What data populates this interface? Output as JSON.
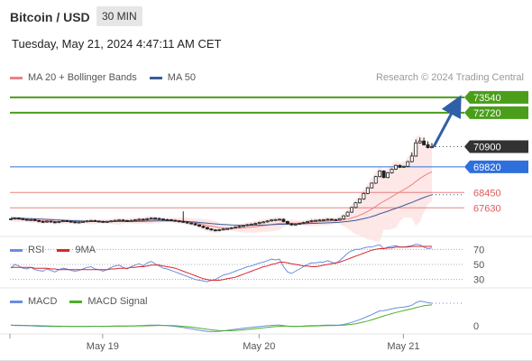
{
  "header": {
    "title": "Bitcoin / USD",
    "interval": "30 MIN",
    "datetime": "Tuesday, May 21, 2024 4:47:11 AM CET",
    "credit": "Research © 2024 Trading Central"
  },
  "legends": {
    "main": [
      {
        "label": "MA 20 + Bollinger Bands",
        "color": "#f08080"
      },
      {
        "label": "MA 50",
        "color": "#3a5c99"
      }
    ],
    "rsi": [
      {
        "label": "RSI",
        "color": "#6a8de0"
      },
      {
        "label": "9MA",
        "color": "#d9262b"
      }
    ],
    "macd": [
      {
        "label": "MACD",
        "color": "#6a8de0"
      },
      {
        "label": "MACD Signal",
        "color": "#4caf2a"
      }
    ]
  },
  "colors": {
    "target": "#4a9e1a",
    "support": "#2f6fdc",
    "resistance_low": "#e05a5a",
    "current": "#333333",
    "arrow": "#2f5fa6",
    "candle": "#222222",
    "band_fill": "#fde3e3"
  },
  "chart_data": [
    {
      "type": "candlestick",
      "x_ticks": [
        "May 19",
        "May 20",
        "May 21"
      ],
      "ylim": [
        66100,
        74400
      ],
      "levels": [
        {
          "label": "73540",
          "value": 73540,
          "kind": "target"
        },
        {
          "label": "72720",
          "value": 72720,
          "kind": "target"
        },
        {
          "label": "70900",
          "value": 70900,
          "kind": "current"
        },
        {
          "label": "69820",
          "value": 69820,
          "kind": "support"
        },
        {
          "label": "68450",
          "value": 68450,
          "kind": "resistance"
        },
        {
          "label": "67630",
          "value": 67630,
          "kind": "resistance"
        }
      ],
      "close": [
        67040,
        67080,
        67050,
        67010,
        66980,
        67000,
        66950,
        66900,
        66870,
        66920,
        66880,
        66850,
        66900,
        66940,
        66910,
        66880,
        66850,
        66870,
        66900,
        66930,
        66950,
        66920,
        66900,
        66880,
        66900,
        66930,
        66960,
        66980,
        66950,
        66930,
        66960,
        66990,
        67020,
        67000,
        67050,
        67080,
        67060,
        67030,
        67000,
        66990,
        66960,
        66930,
        66900,
        66870,
        66820,
        66780,
        66720,
        66650,
        66580,
        66500,
        66450,
        66420,
        66460,
        66500,
        66520,
        66560,
        66600,
        66640,
        66680,
        66730,
        66760,
        66800,
        66850,
        66880,
        66930,
        66980,
        67000,
        67020,
        66900,
        66780,
        66720,
        66760,
        66800,
        66850,
        66900,
        66950,
        66960,
        66980,
        66990,
        67020,
        67000,
        66980,
        67050,
        67200,
        67400,
        67650,
        67900,
        68100,
        68400,
        68700,
        68950,
        69300,
        69600,
        69250,
        69500,
        69700,
        69900,
        69800,
        69850,
        70100,
        70400,
        71100,
        71200,
        71000,
        70850,
        70900
      ],
      "ma20": [
        67050,
        67040,
        67020,
        67000,
        66980,
        66970,
        66960,
        66950,
        66940,
        66930,
        66920,
        66910,
        66900,
        66900,
        66900,
        66890,
        66890,
        66890,
        66890,
        66900,
        66900,
        66900,
        66900,
        66900,
        66900,
        66900,
        66910,
        66910,
        66920,
        66920,
        66930,
        66940,
        66950,
        66960,
        66970,
        66980,
        66990,
        66990,
        66990,
        66990,
        66980,
        66970,
        66950,
        66930,
        66900,
        66870,
        66830,
        66790,
        66740,
        66690,
        66650,
        66610,
        66580,
        66560,
        66550,
        66540,
        66540,
        66550,
        66560,
        66580,
        66600,
        66620,
        66650,
        66680,
        66710,
        66740,
        66770,
        66800,
        66810,
        66810,
        66810,
        66810,
        66820,
        66830,
        66840,
        66860,
        66870,
        66890,
        66900,
        66920,
        66930,
        66940,
        66960,
        66990,
        67030,
        67090,
        67150,
        67230,
        67330,
        67440,
        67560,
        67700,
        67850,
        67980,
        68100,
        68230,
        68360,
        68480,
        68600,
        68730,
        68870,
        69040,
        69200,
        69340,
        69460,
        69560
      ],
      "ma50": [
        67100,
        67090,
        67080,
        67070,
        67060,
        67050,
        67040,
        67030,
        67020,
        67010,
        67000,
        66990,
        66980,
        66970,
        66960,
        66950,
        66940,
        66930,
        66920,
        66920,
        66910,
        66910,
        66900,
        66900,
        66900,
        66900,
        66900,
        66900,
        66900,
        66900,
        66900,
        66900,
        66910,
        66910,
        66920,
        66920,
        66930,
        66930,
        66930,
        66930,
        66930,
        66920,
        66920,
        66910,
        66900,
        66880,
        66870,
        66850,
        66830,
        66810,
        66790,
        66770,
        66750,
        66740,
        66730,
        66720,
        66710,
        66700,
        66700,
        66700,
        66700,
        66700,
        66710,
        66710,
        66720,
        66730,
        66740,
        66750,
        66750,
        66760,
        66760,
        66770,
        66770,
        66780,
        66790,
        66800,
        66800,
        66810,
        66820,
        66830,
        66840,
        66850,
        66860,
        66880,
        66900,
        66930,
        66960,
        67000,
        67050,
        67100,
        67160,
        67230,
        67310,
        67380,
        67450,
        67530,
        67600,
        67680,
        67760,
        67840,
        67920,
        68010,
        68100,
        68180,
        68260,
        68330
      ]
    },
    {
      "type": "line",
      "title": "RSI",
      "y_ticks": [
        70,
        50,
        30
      ],
      "ylim": [
        20,
        80
      ],
      "series": [
        {
          "name": "RSI",
          "values": [
            45,
            50,
            48,
            45,
            44,
            46,
            43,
            42,
            41,
            44,
            42,
            40,
            43,
            45,
            44,
            42,
            41,
            42,
            44,
            46,
            47,
            44,
            43,
            41,
            43,
            46,
            48,
            49,
            46,
            44,
            47,
            49,
            51,
            48,
            52,
            54,
            51,
            48,
            45,
            44,
            42,
            40,
            38,
            36,
            34,
            32,
            30,
            29,
            28,
            27,
            29,
            30,
            33,
            36,
            37,
            39,
            41,
            43,
            45,
            47,
            48,
            50,
            52,
            53,
            55,
            57,
            56,
            57,
            47,
            40,
            38,
            41,
            44,
            47,
            50,
            52,
            52,
            53,
            53,
            55,
            53,
            51,
            55,
            60,
            65,
            68,
            70,
            70,
            72,
            73,
            73,
            75,
            76,
            71,
            73,
            74,
            75,
            73,
            73,
            74,
            75,
            77,
            76,
            73,
            71,
            72
          ]
        },
        {
          "name": "9MA",
          "values": [
            46,
            46,
            46,
            46,
            46,
            46,
            45,
            45,
            45,
            45,
            44,
            44,
            43,
            43,
            43,
            43,
            43,
            43,
            43,
            43,
            43,
            43,
            43,
            43,
            43,
            44,
            44,
            45,
            45,
            45,
            46,
            46,
            47,
            47,
            48,
            49,
            49,
            49,
            48,
            47,
            46,
            45,
            43,
            41,
            39,
            37,
            35,
            33,
            31,
            30,
            29,
            29,
            29,
            30,
            31,
            32,
            33,
            35,
            37,
            39,
            41,
            43,
            45,
            47,
            48,
            50,
            51,
            53,
            53,
            52,
            51,
            50,
            49,
            48,
            48,
            47,
            47,
            48,
            49,
            50,
            51,
            52,
            53,
            55,
            57,
            59,
            61,
            63,
            65,
            67,
            69,
            70,
            71,
            71,
            72,
            72,
            73,
            73,
            73,
            73,
            74,
            74,
            74,
            74,
            74,
            74
          ]
        }
      ]
    },
    {
      "type": "line",
      "title": "MACD",
      "y_ticks": [
        0
      ],
      "ylim": [
        -120,
        620
      ],
      "series": [
        {
          "name": "MACD",
          "values": [
            10,
            8,
            6,
            4,
            2,
            0,
            -4,
            -8,
            -10,
            -10,
            -12,
            -14,
            -12,
            -10,
            -10,
            -12,
            -14,
            -13,
            -12,
            -10,
            -8,
            -8,
            -8,
            -9,
            -8,
            -6,
            -4,
            -2,
            -3,
            -4,
            -2,
            0,
            4,
            6,
            10,
            14,
            14,
            12,
            8,
            4,
            -4,
            -12,
            -22,
            -32,
            -44,
            -56,
            -70,
            -84,
            -96,
            -106,
            -110,
            -110,
            -104,
            -96,
            -86,
            -76,
            -66,
            -56,
            -46,
            -36,
            -28,
            -20,
            -12,
            -6,
            2,
            8,
            12,
            16,
            4,
            -8,
            -14,
            -12,
            -8,
            -4,
            0,
            4,
            6,
            8,
            10,
            12,
            12,
            12,
            16,
            26,
            44,
            66,
            92,
            118,
            148,
            182,
            212,
            250,
            286,
            290,
            306,
            322,
            340,
            350,
            356,
            370,
            392,
            440,
            470,
            460,
            440,
            430
          ]
        },
        {
          "name": "MACD Signal",
          "values": [
            12,
            11,
            10,
            9,
            8,
            6,
            4,
            2,
            0,
            -2,
            -4,
            -6,
            -7,
            -8,
            -9,
            -9,
            -10,
            -10,
            -11,
            -11,
            -10,
            -10,
            -9,
            -9,
            -9,
            -8,
            -7,
            -6,
            -6,
            -5,
            -4,
            -3,
            -2,
            -1,
            1,
            3,
            5,
            7,
            8,
            7,
            5,
            2,
            -3,
            -9,
            -16,
            -24,
            -34,
            -44,
            -55,
            -66,
            -76,
            -84,
            -90,
            -93,
            -94,
            -92,
            -88,
            -83,
            -76,
            -69,
            -61,
            -53,
            -45,
            -37,
            -29,
            -22,
            -15,
            -9,
            -7,
            -7,
            -8,
            -9,
            -9,
            -8,
            -6,
            -4,
            -2,
            0,
            2,
            4,
            6,
            8,
            10,
            13,
            19,
            28,
            40,
            55,
            72,
            92,
            114,
            138,
            164,
            188,
            210,
            232,
            253,
            273,
            291,
            308,
            326,
            346,
            366,
            382,
            393,
            400
          ]
        }
      ]
    }
  ]
}
